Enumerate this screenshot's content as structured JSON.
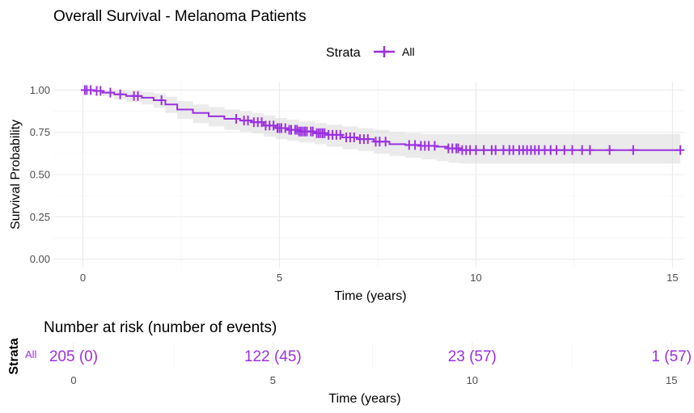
{
  "chart_data": [
    {
      "type": "line",
      "title": "Overall Survival - Melanoma Patients",
      "xlabel": "Time (years)",
      "ylabel": "Survival Probability",
      "xlim": [
        0,
        15.3
      ],
      "ylim": [
        0,
        1
      ],
      "x_ticks": [
        0,
        5,
        10,
        15
      ],
      "y_ticks": [
        0.0,
        0.25,
        0.5,
        0.75,
        1.0
      ],
      "y_tick_labels": [
        "0.00",
        "0.25",
        "0.50",
        "0.75",
        "1.00"
      ],
      "grid": true,
      "legend": {
        "title": "Strata",
        "position": "top",
        "entries": [
          "All"
        ]
      },
      "series": [
        {
          "name": "All",
          "color": "#9b30e0",
          "x": [
            0,
            0.3,
            0.5,
            0.8,
            1.1,
            1.5,
            1.8,
            2.1,
            2.4,
            2.8,
            3.2,
            3.6,
            4.0,
            4.3,
            4.6,
            4.9,
            5.2,
            5.5,
            5.9,
            6.2,
            6.6,
            7.0,
            7.4,
            7.8,
            8.2,
            8.6,
            9.0,
            9.3,
            9.6,
            10.0,
            11.0,
            12.0,
            13.0,
            14.0,
            15.2
          ],
          "y": [
            1.0,
            0.995,
            0.985,
            0.975,
            0.965,
            0.955,
            0.94,
            0.915,
            0.885,
            0.865,
            0.845,
            0.83,
            0.82,
            0.81,
            0.79,
            0.775,
            0.765,
            0.755,
            0.745,
            0.735,
            0.72,
            0.71,
            0.695,
            0.68,
            0.675,
            0.67,
            0.665,
            0.655,
            0.645,
            0.645,
            0.645,
            0.645,
            0.645,
            0.645,
            0.645
          ],
          "lower": [
            1.0,
            0.985,
            0.965,
            0.945,
            0.93,
            0.915,
            0.895,
            0.865,
            0.83,
            0.805,
            0.785,
            0.765,
            0.755,
            0.745,
            0.725,
            0.71,
            0.7,
            0.69,
            0.68,
            0.665,
            0.65,
            0.64,
            0.625,
            0.61,
            0.6,
            0.59,
            0.58,
            0.57,
            0.565,
            0.565,
            0.565,
            0.565,
            0.565,
            0.565,
            0.565
          ],
          "upper": [
            1.0,
            1.0,
            1.0,
            1.0,
            0.995,
            0.99,
            0.98,
            0.96,
            0.935,
            0.915,
            0.9,
            0.885,
            0.875,
            0.865,
            0.85,
            0.835,
            0.825,
            0.815,
            0.805,
            0.795,
            0.785,
            0.775,
            0.765,
            0.75,
            0.745,
            0.74,
            0.74,
            0.74,
            0.74,
            0.74,
            0.74,
            0.74,
            0.74,
            0.74,
            0.74
          ],
          "censor_x": [
            0.05,
            0.1,
            0.2,
            0.35,
            0.45,
            0.7,
            0.95,
            1.3,
            1.4,
            2.0,
            3.9,
            4.1,
            4.2,
            4.35,
            4.45,
            4.55,
            4.65,
            4.75,
            4.85,
            4.95,
            5.0,
            5.05,
            5.15,
            5.25,
            5.3,
            5.4,
            5.45,
            5.5,
            5.55,
            5.6,
            5.65,
            5.7,
            5.8,
            5.85,
            5.95,
            6.0,
            6.05,
            6.1,
            6.15,
            6.25,
            6.35,
            6.45,
            6.55,
            6.7,
            6.8,
            6.9,
            7.05,
            7.15,
            7.25,
            7.45,
            7.55,
            7.7,
            8.3,
            8.45,
            8.6,
            8.7,
            8.8,
            8.95,
            9.3,
            9.4,
            9.5,
            9.55,
            9.65,
            9.75,
            9.85,
            10.0,
            10.2,
            10.4,
            10.5,
            10.7,
            10.85,
            10.95,
            11.1,
            11.2,
            11.3,
            11.4,
            11.5,
            11.6,
            11.75,
            11.9,
            12.05,
            12.25,
            12.45,
            12.7,
            12.9,
            13.4,
            14.0,
            15.2
          ]
        }
      ]
    },
    {
      "type": "table",
      "title": "Number at risk (number of events)",
      "xlabel": "Time (years)",
      "ylabel": "Strata",
      "x_ticks": [
        0,
        5,
        10,
        15
      ],
      "strata": "All",
      "rows": [
        {
          "x": 0,
          "label": "205 (0)"
        },
        {
          "x": 5,
          "label": "122 (45)"
        },
        {
          "x": 10,
          "label": "23 (57)"
        },
        {
          "x": 15,
          "label": "1 (57)"
        }
      ]
    }
  ]
}
